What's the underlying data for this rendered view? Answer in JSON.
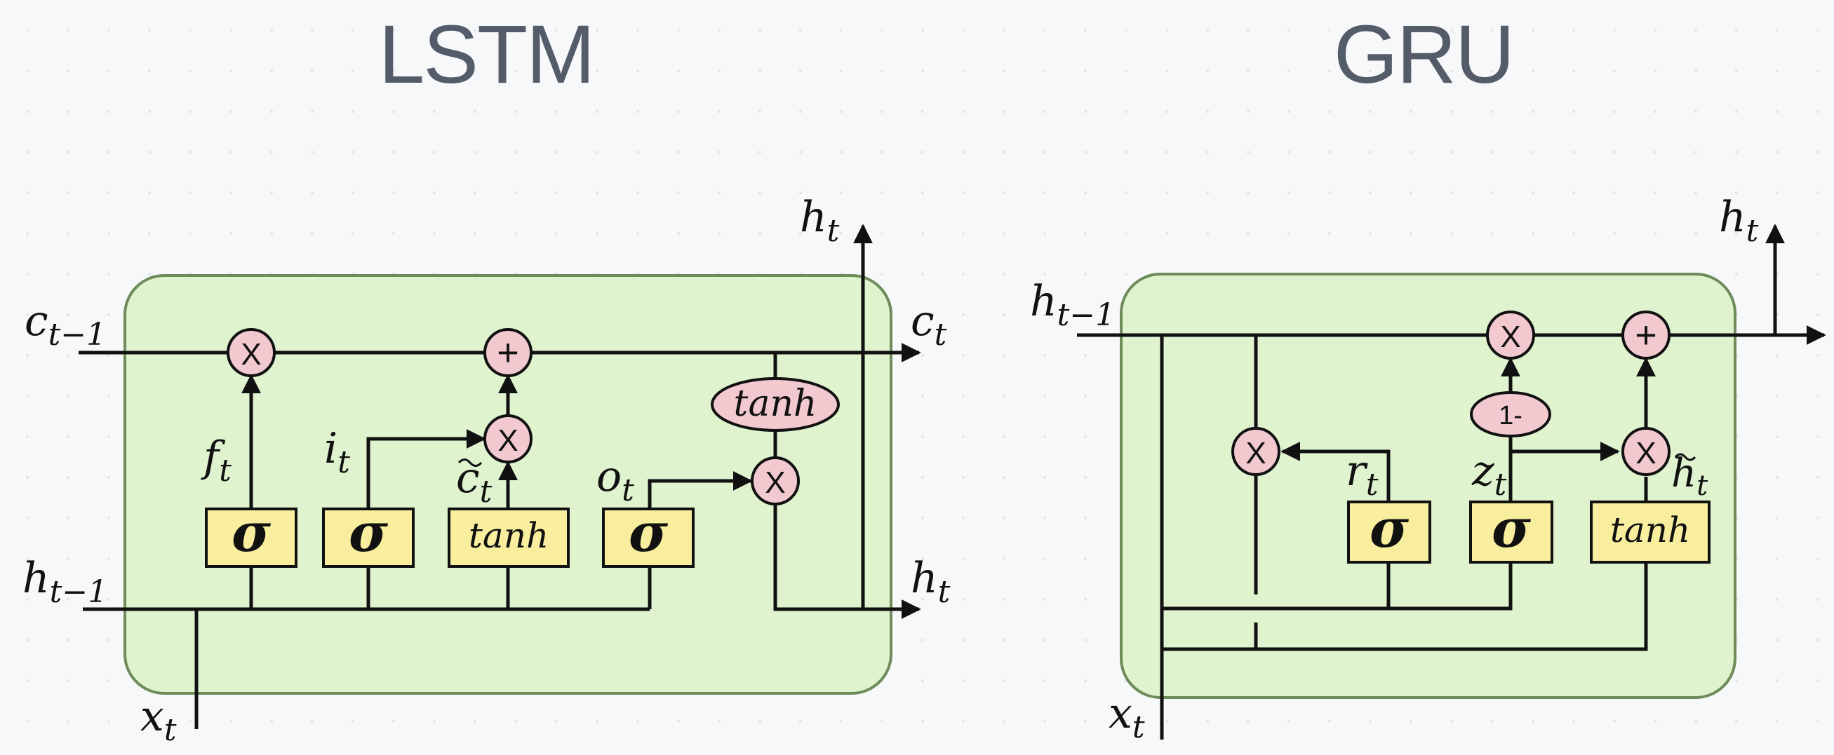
{
  "titles": {
    "lstm": "LSTM",
    "gru": "GRU"
  },
  "glyphs": {
    "multiply": "X",
    "add": "+",
    "sigma": "σ",
    "tanh": "tanh",
    "one_minus": "1-"
  },
  "lstm": {
    "labels": {
      "c_prev": {
        "base": "c",
        "sub": "t−1"
      },
      "c_t": {
        "base": "c",
        "sub": "t"
      },
      "h_prev": {
        "base": "h",
        "sub": "t−1"
      },
      "h_t_out": {
        "base": "h",
        "sub": "t"
      },
      "h_t_top": {
        "base": "h",
        "sub": "t"
      },
      "x_t": {
        "base": "x",
        "sub": "t"
      },
      "f_t": {
        "base": "f",
        "sub": "t"
      },
      "i_t": {
        "base": "i",
        "sub": "t"
      },
      "c_tilde": {
        "base": "c",
        "sub": "t"
      },
      "o_t": {
        "base": "o",
        "sub": "t"
      }
    }
  },
  "gru": {
    "labels": {
      "h_prev": {
        "base": "h",
        "sub": "t−1"
      },
      "h_t_top": {
        "base": "h",
        "sub": "t"
      },
      "x_t": {
        "base": "x",
        "sub": "t"
      },
      "r_t": {
        "base": "r",
        "sub": "t"
      },
      "z_t": {
        "base": "z",
        "sub": "t"
      },
      "h_tilde": {
        "base": "h",
        "sub": "t"
      }
    }
  },
  "colors": {
    "cell_fill": "#e0f3cf",
    "cell_stroke": "#6e8c5a",
    "gate_fill": "#f8ee9e",
    "op_fill": "#f1c9cf",
    "line": "#111111",
    "title": "#545c69"
  }
}
